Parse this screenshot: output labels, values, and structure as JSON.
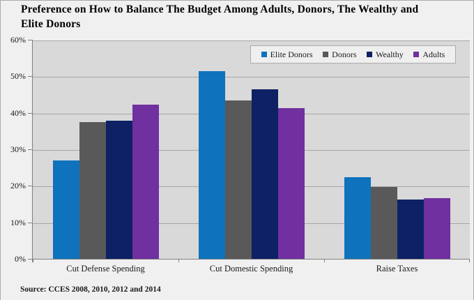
{
  "header": {
    "title_text": "Preference on How to Balance The Budget Among Adults, Donors, The Wealthy and\nElite Donors"
  },
  "chart_data": {
    "type": "bar",
    "title": "Preference on How to Balance The Budget Among Adults, Donors, The Wealthy and Elite Donors",
    "categories": [
      "Cut Defense Spending",
      "Cut Domestic Spending",
      "Raise Taxes"
    ],
    "series": [
      {
        "name": "Elite Donors",
        "color": "#0E72BD",
        "values": [
          27.1,
          51.5,
          22.5
        ]
      },
      {
        "name": "Donors",
        "color": "#595959",
        "values": [
          37.6,
          43.5,
          19.9
        ]
      },
      {
        "name": "Wealthy",
        "color": "#0D2164",
        "values": [
          38.0,
          46.7,
          16.4
        ]
      },
      {
        "name": "Adults",
        "color": "#7030A0",
        "values": [
          42.4,
          41.5,
          16.9
        ]
      }
    ],
    "xlabel": "",
    "ylabel": "",
    "ylim": [
      0,
      60
    ],
    "ytick_step": 10,
    "ytick_labels": [
      "0%",
      "10%",
      "20%",
      "30%",
      "40%",
      "50%",
      "60%"
    ],
    "grid": true,
    "legend_position": "top-right",
    "source_note": "Source: CCES 2008, 2010, 2012 and 2014"
  },
  "colors": {
    "page_background": "#F1F0F0",
    "plot_background": "#D9D9D9",
    "gridline": "#A6A6A6",
    "axis": "#808080",
    "legend_background": "#F0EFEF",
    "legend_border": "#ABABAB",
    "text": "#1A1A1A"
  }
}
